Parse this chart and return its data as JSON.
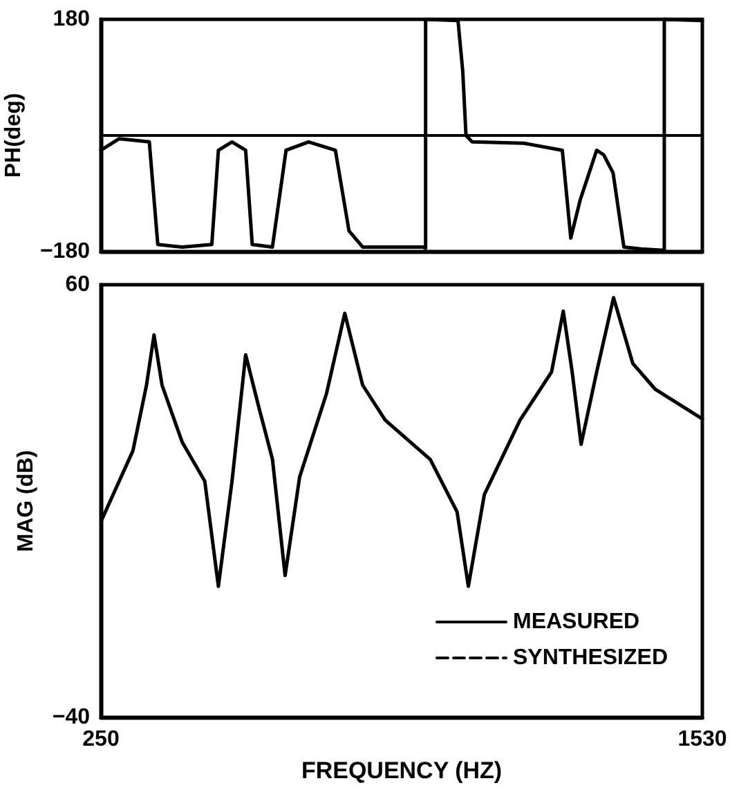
{
  "chart_data": [
    {
      "type": "line",
      "ylabel": "PH(deg)",
      "xlim": [
        250,
        1530
      ],
      "ylim": [
        -180,
        180
      ],
      "yticks": [
        -180,
        180
      ],
      "tick_labels": "y",
      "grid": false,
      "legend": false,
      "marker": "none",
      "ref_lines": [
        {
          "axis": "y",
          "value": 0,
          "color": "#000000"
        }
      ],
      "series": [
        {
          "color": "#000000",
          "line_style": "solid",
          "x": [
            250,
            289,
            353,
            356,
            371,
            423,
            486,
            500,
            529,
            558,
            572,
            615,
            644,
            692,
            749,
            778,
            807,
            936,
            941,
            941,
            1010,
            1020,
            1027,
            1040,
            1150,
            1232,
            1250,
            1270,
            1305,
            1320,
            1340,
            1363,
            1400,
            1449,
            1449,
            1530
          ],
          "values": [
            -23,
            -5,
            -10,
            -37,
            -169,
            -173,
            -169,
            -23,
            -10,
            -23,
            -169,
            -173,
            -23,
            -10,
            -23,
            -148,
            -173,
            -173,
            -175,
            180,
            178,
            100,
            0,
            -10,
            -12,
            -23,
            -159,
            -100,
            -23,
            -30,
            -58,
            -173,
            -176,
            -178,
            180,
            178
          ]
        },
        {
          "color": "#000000",
          "line_style": "dashed"
        }
      ]
    },
    {
      "type": "line",
      "ylabel": "MAG (dB)",
      "xlabel": "FREQUENCY (HZ)",
      "xlim": [
        250,
        1530
      ],
      "xticks": [
        250,
        1530
      ],
      "ylim": [
        -40,
        60
      ],
      "yticks": [
        -40,
        60
      ],
      "grid": false,
      "legend": "bottom right",
      "marker": "none",
      "series": [
        {
          "name": "MEASURED",
          "color": "#000000",
          "line_style": "solid",
          "x": [
            251,
            318,
            347,
            363,
            380,
            423,
            471,
            500,
            529,
            558,
            586,
            615,
            642,
            673,
            730,
            769,
            807,
            855,
            951,
            1008,
            1032,
            1066,
            1142,
            1209,
            1234,
            1253,
            1272,
            1305,
            1341,
            1382,
            1430,
            1530
          ],
          "values": [
            5.5,
            21.6,
            36.8,
            48.4,
            36.8,
            23.6,
            14.6,
            -9.7,
            14.6,
            43.8,
            31.7,
            19.7,
            -7.2,
            15.6,
            34.8,
            53.4,
            36.8,
            28.7,
            19.6,
            7.5,
            -9.7,
            11.5,
            28.7,
            39.8,
            53.9,
            39.8,
            23.1,
            39.8,
            57,
            41.8,
            35.8,
            29
          ]
        },
        {
          "name": "SYNTHESIZED",
          "color": "#000000",
          "line_style": "dashed"
        }
      ]
    }
  ]
}
